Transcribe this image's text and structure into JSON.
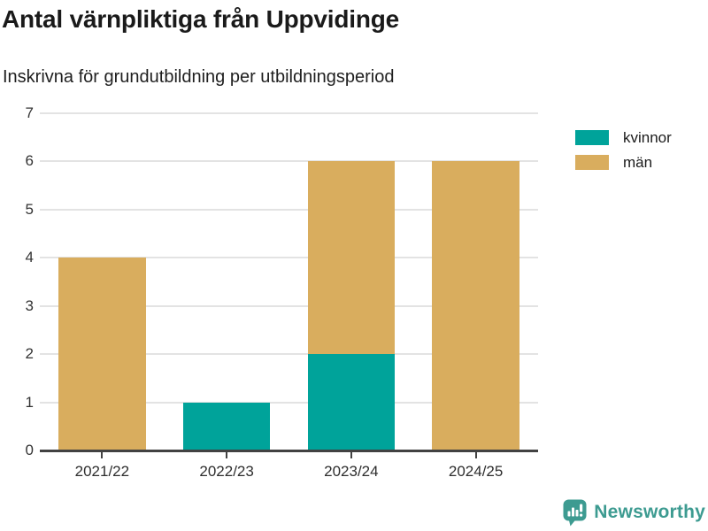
{
  "chart_data": {
    "type": "bar",
    "stacked": true,
    "title": "Antal värnpliktiga från Uppvidinge",
    "subtitle": "Inskrivna för grundutbildning per utbildningsperiod",
    "categories": [
      "2021/22",
      "2022/23",
      "2023/24",
      "2024/25"
    ],
    "series": [
      {
        "name": "kvinnor",
        "color": "#00a39a",
        "values": [
          0,
          1,
          2,
          0
        ]
      },
      {
        "name": "män",
        "color": "#d9ad5e",
        "values": [
          4,
          0,
          4,
          6
        ]
      }
    ],
    "totals": [
      4,
      1,
      6,
      6
    ],
    "ylim": [
      0,
      7
    ],
    "ytick_step": 1,
    "yticks": [
      0,
      1,
      2,
      3,
      4,
      5,
      6,
      7
    ],
    "xlabel": "",
    "ylabel": "",
    "grid": "horizontal",
    "legend_position": "right-top"
  },
  "branding": {
    "name": "Newsworthy",
    "color": "#3d9b91",
    "icon": "newsworthy-bubble-chart-icon"
  }
}
